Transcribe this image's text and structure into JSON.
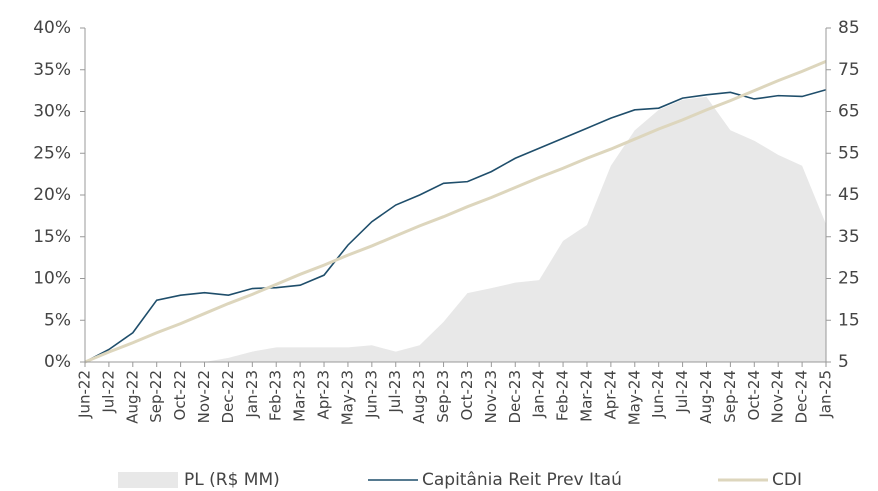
{
  "chart_data": {
    "type": "line",
    "categories": [
      "Jun-22",
      "Jul-22",
      "Aug-22",
      "Sep-22",
      "Oct-22",
      "Nov-22",
      "Dec-22",
      "Jan-23",
      "Feb-23",
      "Mar-23",
      "Apr-23",
      "May-23",
      "Jun-23",
      "Jul-23",
      "Aug-23",
      "Sep-23",
      "Oct-23",
      "Nov-23",
      "Dec-23",
      "Jan-24",
      "Feb-24",
      "Mar-24",
      "Apr-24",
      "May-24",
      "Jun-24",
      "Jul-24",
      "Aug-24",
      "Sep-24",
      "Oct-24",
      "Nov-24",
      "Dec-24",
      "Jan-25"
    ],
    "series": [
      {
        "name": "PL (R$ MM)",
        "color": "#e8e8e8",
        "axis": "y2",
        "kind": "area",
        "values": [
          5,
          5,
          5,
          5,
          5,
          5,
          6,
          7.5,
          8.5,
          8.5,
          8.5,
          8.5,
          9,
          7.5,
          9,
          14.6,
          21.5,
          22.7,
          24,
          24.6,
          34,
          37.8,
          52,
          60.5,
          65.4,
          67.8,
          68.5,
          60.5,
          58,
          54.6,
          52,
          38
        ]
      },
      {
        "name": "Capitânia Reit Prev Itaú",
        "color": "#1f4e6b",
        "axis": "y",
        "values": [
          0,
          1.5,
          3.5,
          7.4,
          8,
          8.3,
          8,
          8.8,
          8.9,
          9.2,
          10.4,
          14,
          16.8,
          18.8,
          20,
          21.4,
          21.6,
          22.8,
          24.4,
          25.6,
          26.8,
          28,
          29.2,
          30.2,
          30.4,
          31.6,
          32,
          32.3,
          31.5,
          31.9,
          31.8,
          32.6
        ]
      },
      {
        "name": "CDI",
        "color": "#ddd6bd",
        "axis": "y",
        "values": [
          0,
          1.2,
          2.3,
          3.5,
          4.6,
          5.8,
          7,
          8.1,
          9.3,
          10.5,
          11.6,
          12.8,
          13.9,
          15.1,
          16.3,
          17.4,
          18.6,
          19.7,
          20.9,
          22.1,
          23.2,
          24.4,
          25.5,
          26.7,
          27.9,
          29,
          30.2,
          31.3,
          32.5,
          33.7,
          34.8,
          36
        ]
      }
    ],
    "ylim": [
      0,
      40
    ],
    "yticks": [
      {
        "value": 0,
        "label": "0%"
      },
      {
        "value": 5,
        "label": "5%"
      },
      {
        "value": 10,
        "label": "10%"
      },
      {
        "value": 15,
        "label": "15%"
      },
      {
        "value": 20,
        "label": "20%"
      },
      {
        "value": 25,
        "label": "25%"
      },
      {
        "value": 30,
        "label": "30%"
      },
      {
        "value": 35,
        "label": "35%"
      },
      {
        "value": 40,
        "label": "40%"
      }
    ],
    "y2lim": [
      5,
      85
    ],
    "y2ticks": [
      5,
      15,
      25,
      35,
      45,
      55,
      65,
      75,
      85
    ],
    "legend": "bottom"
  }
}
